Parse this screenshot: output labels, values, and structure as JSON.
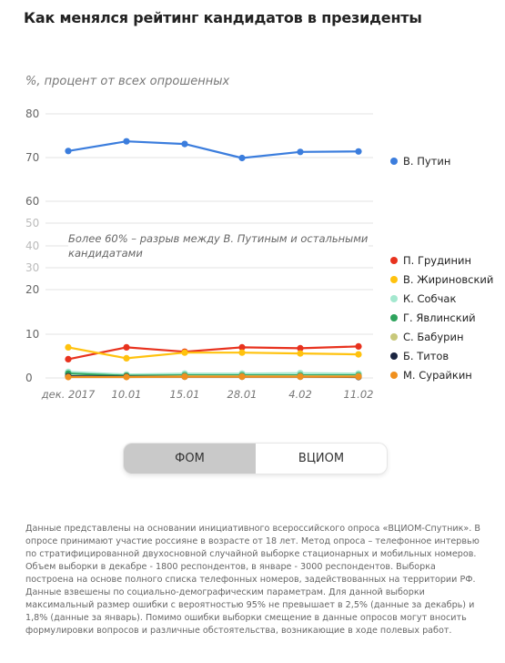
{
  "title": "Как менялся рейтинг кандидатов в президенты",
  "colors": {
    "grid": "#dddddd",
    "axis_text": "#666666"
  },
  "chart_data": {
    "type": "line",
    "ylabel": "%, процент от всех опрошенных",
    "x": [
      "дек. 2017",
      "10.01",
      "15.01",
      "28.01",
      "4.02",
      "11.02"
    ],
    "y_ticks": [
      0,
      10,
      20,
      30,
      40,
      50,
      60,
      70,
      80
    ],
    "ylim": [
      0,
      80
    ],
    "axis_break": "between 50 and 60",
    "annotation": "Более 60% – разрыв между В. Путиным и остальными кандидатами",
    "series": [
      {
        "name": "В. Путин",
        "color": "#3b7ddd",
        "values": [
          71.5,
          73.7,
          73.1,
          69.9,
          71.3,
          71.4
        ]
      },
      {
        "name": "П. Грудинин",
        "color": "#e8321e",
        "values": [
          4.3,
          7.0,
          6.0,
          7.0,
          6.8,
          7.2
        ]
      },
      {
        "name": "В. Жириновский",
        "color": "#ffc20e",
        "values": [
          7.0,
          4.5,
          5.8,
          5.8,
          5.6,
          5.4
        ]
      },
      {
        "name": "К. Собчак",
        "color": "#a4e8cf",
        "values": [
          1.4,
          0.8,
          1.0,
          1.0,
          1.1,
          1.0
        ]
      },
      {
        "name": "Г. Явлинский",
        "color": "#2ea35c",
        "values": [
          1.0,
          0.5,
          0.6,
          0.6,
          0.6,
          0.6
        ]
      },
      {
        "name": "С. Бабурин",
        "color": "#c8c87a",
        "values": [
          0.3,
          0.3,
          0.4,
          0.4,
          0.4,
          0.4
        ]
      },
      {
        "name": "Б. Титов",
        "color": "#1a2440",
        "values": [
          0.4,
          0.3,
          0.3,
          0.3,
          0.3,
          0.2
        ]
      },
      {
        "name": "М. Сурайкин",
        "color": "#f0901e",
        "values": [
          0.2,
          0.2,
          0.3,
          0.3,
          0.3,
          0.3
        ]
      }
    ]
  },
  "toggle": {
    "options": [
      "ФОМ",
      "ВЦИОМ"
    ],
    "active": "ФОМ"
  },
  "note": "Данные представлены на основании инициативного всероссийского опроса «ВЦИОМ-Спутник». В опросе принимают участие россияне в возрасте от 18 лет. Метод опроса – телефонное интервью по стратифицированной двухосновной случайной выборке стационарных и мобильных номеров. Объем выборки в декабре - 1800 респондентов, в январе - 3000 респондентов. Выборка построена на основе полного списка телефонных номеров, задействованных на территории РФ. Данные взвешены по социально-демографическим параметрам. Для данной выборки максимальный размер ошибки с вероятностью 95% не превышает в 2,5% (данные за декабрь) и 1,8% (данные за январь). Помимо ошибки выборки смещение в данные опросов могут вносить формулировки вопросов и различные обстоятельства, возникающие в ходе полевых работ."
}
